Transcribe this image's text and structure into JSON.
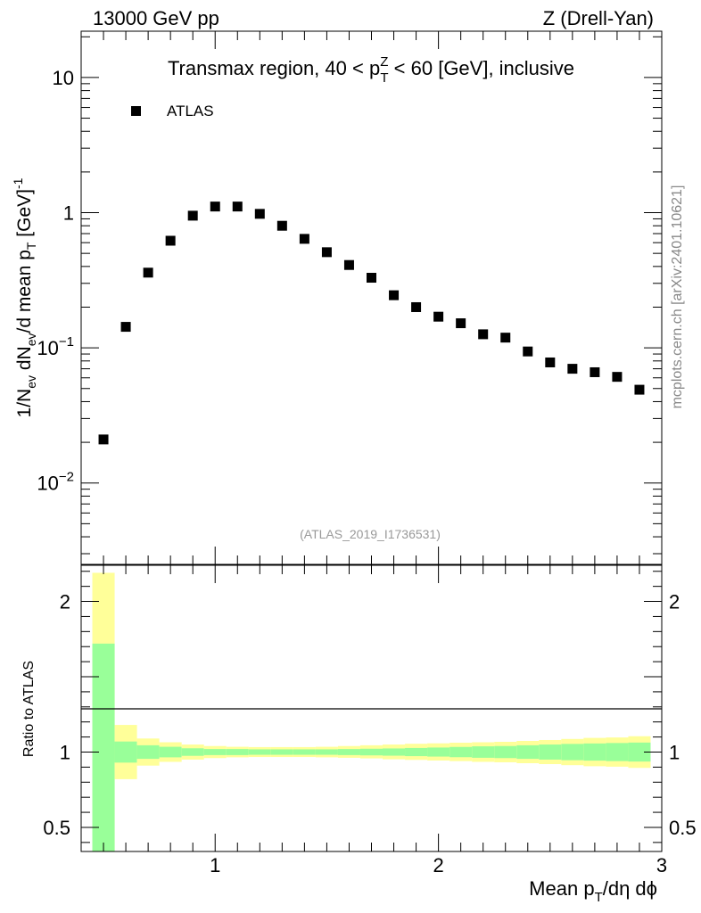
{
  "header": {
    "left": "13000 GeV pp",
    "right": "Z (Drell-Yan)"
  },
  "side_label": "mcplots.cern.ch [arXiv:2401.10621]",
  "chart_data": [
    {
      "type": "scatter",
      "title": "Transmax region, 40 < p_T^Z < 60 [GeV], inclusive",
      "title_parts": {
        "pre": "Transmax region, 40 < p",
        "sup": "Z",
        "sub": "T",
        "post": " < 60 [GeV], inclusive"
      },
      "xlabel": "Mean p_T/dη dϕ",
      "ylabel": "1/N_ev dN_ev/d mean p_T [GeV]^-1",
      "yscale": "log",
      "xlim": [
        0.4,
        3.0
      ],
      "ylim": [
        0.0025,
        22
      ],
      "yticks": [
        {
          "value": 10,
          "label": "10"
        },
        {
          "value": 1,
          "label": "1"
        },
        {
          "value": 0.1,
          "base": "10",
          "exp": "−1"
        },
        {
          "value": 0.01,
          "base": "10",
          "exp": "−2"
        }
      ],
      "legend": {
        "label": "ATLAS",
        "position": "top-left"
      },
      "reference": "(ATLAS_2019_I1736531)",
      "series": [
        {
          "name": "ATLAS",
          "x": [
            0.5,
            0.6,
            0.7,
            0.8,
            0.9,
            1.0,
            1.1,
            1.2,
            1.3,
            1.4,
            1.5,
            1.6,
            1.7,
            1.8,
            1.9,
            2.0,
            2.1,
            2.2,
            2.3,
            2.4,
            2.5,
            2.6,
            2.7,
            2.8,
            2.9
          ],
          "y": [
            0.021,
            0.143,
            0.36,
            0.62,
            0.95,
            1.11,
            1.11,
            0.98,
            0.8,
            0.64,
            0.51,
            0.41,
            0.33,
            0.245,
            0.2,
            0.17,
            0.152,
            0.126,
            0.119,
            0.094,
            0.078,
            0.07,
            0.066,
            0.061,
            0.049
          ]
        }
      ]
    },
    {
      "type": "band",
      "ylabel": "Ratio to ATLAS",
      "xlabel": "Mean p_T/dη dϕ",
      "xlabel_parts": {
        "pre": "Mean p",
        "sub": "T",
        "post": "/dη dϕ"
      },
      "xlim": [
        0.4,
        3.0
      ],
      "ylim": [
        0.34,
        2.24
      ],
      "xticks": [
        1,
        2,
        3
      ],
      "yticks": [
        {
          "value": 2,
          "label": "2"
        },
        {
          "value": 1,
          "label": "1"
        },
        {
          "value": 0.5,
          "label": "0.5"
        }
      ],
      "bins": [
        {
          "x0": 0.45,
          "x1": 0.55,
          "stat_lo": 0.34,
          "stat_hi": 1.72,
          "tot_lo": 0.34,
          "tot_hi": 2.19
        },
        {
          "x0": 0.55,
          "x1": 0.65,
          "stat_lo": 0.93,
          "stat_hi": 1.07,
          "tot_lo": 0.82,
          "tot_hi": 1.18
        },
        {
          "x0": 0.65,
          "x1": 0.75,
          "stat_lo": 0.955,
          "stat_hi": 1.045,
          "tot_lo": 0.91,
          "tot_hi": 1.09
        },
        {
          "x0": 0.75,
          "x1": 0.85,
          "stat_lo": 0.965,
          "stat_hi": 1.035,
          "tot_lo": 0.935,
          "tot_hi": 1.065
        },
        {
          "x0": 0.85,
          "x1": 0.95,
          "stat_lo": 0.975,
          "stat_hi": 1.025,
          "tot_lo": 0.95,
          "tot_hi": 1.05
        },
        {
          "x0": 0.95,
          "x1": 1.05,
          "stat_lo": 0.98,
          "stat_hi": 1.02,
          "tot_lo": 0.96,
          "tot_hi": 1.04
        },
        {
          "x0": 1.05,
          "x1": 1.15,
          "stat_lo": 0.98,
          "stat_hi": 1.02,
          "tot_lo": 0.965,
          "tot_hi": 1.035
        },
        {
          "x0": 1.15,
          "x1": 1.25,
          "stat_lo": 0.982,
          "stat_hi": 1.018,
          "tot_lo": 0.967,
          "tot_hi": 1.033
        },
        {
          "x0": 1.25,
          "x1": 1.35,
          "stat_lo": 0.982,
          "stat_hi": 1.018,
          "tot_lo": 0.967,
          "tot_hi": 1.033
        },
        {
          "x0": 1.35,
          "x1": 1.45,
          "stat_lo": 0.982,
          "stat_hi": 1.018,
          "tot_lo": 0.967,
          "tot_hi": 1.033
        },
        {
          "x0": 1.45,
          "x1": 1.55,
          "stat_lo": 0.982,
          "stat_hi": 1.018,
          "tot_lo": 0.965,
          "tot_hi": 1.035
        },
        {
          "x0": 1.55,
          "x1": 1.65,
          "stat_lo": 0.98,
          "stat_hi": 1.02,
          "tot_lo": 0.962,
          "tot_hi": 1.04
        },
        {
          "x0": 1.65,
          "x1": 1.75,
          "stat_lo": 0.978,
          "stat_hi": 1.022,
          "tot_lo": 0.958,
          "tot_hi": 1.045
        },
        {
          "x0": 1.75,
          "x1": 1.85,
          "stat_lo": 0.976,
          "stat_hi": 1.024,
          "tot_lo": 0.952,
          "tot_hi": 1.05
        },
        {
          "x0": 1.85,
          "x1": 1.95,
          "stat_lo": 0.973,
          "stat_hi": 1.027,
          "tot_lo": 0.948,
          "tot_hi": 1.055
        },
        {
          "x0": 1.95,
          "x1": 2.05,
          "stat_lo": 0.97,
          "stat_hi": 1.03,
          "tot_lo": 0.944,
          "tot_hi": 1.058
        },
        {
          "x0": 2.05,
          "x1": 2.15,
          "stat_lo": 0.966,
          "stat_hi": 1.034,
          "tot_lo": 0.94,
          "tot_hi": 1.062
        },
        {
          "x0": 2.15,
          "x1": 2.25,
          "stat_lo": 0.962,
          "stat_hi": 1.038,
          "tot_lo": 0.935,
          "tot_hi": 1.065
        },
        {
          "x0": 2.25,
          "x1": 2.35,
          "stat_lo": 0.96,
          "stat_hi": 1.04,
          "tot_lo": 0.932,
          "tot_hi": 1.068
        },
        {
          "x0": 2.35,
          "x1": 2.45,
          "stat_lo": 0.955,
          "stat_hi": 1.045,
          "tot_lo": 0.926,
          "tot_hi": 1.074
        },
        {
          "x0": 2.45,
          "x1": 2.55,
          "stat_lo": 0.95,
          "stat_hi": 1.05,
          "tot_lo": 0.92,
          "tot_hi": 1.08
        },
        {
          "x0": 2.55,
          "x1": 2.65,
          "stat_lo": 0.946,
          "stat_hi": 1.054,
          "tot_lo": 0.913,
          "tot_hi": 1.087
        },
        {
          "x0": 2.65,
          "x1": 2.75,
          "stat_lo": 0.943,
          "stat_hi": 1.057,
          "tot_lo": 0.906,
          "tot_hi": 1.094
        },
        {
          "x0": 2.75,
          "x1": 2.85,
          "stat_lo": 0.94,
          "stat_hi": 1.06,
          "tot_lo": 0.903,
          "tot_hi": 1.097
        },
        {
          "x0": 2.85,
          "x1": 2.95,
          "stat_lo": 0.937,
          "stat_hi": 1.063,
          "tot_lo": 0.895,
          "tot_hi": 1.105
        }
      ],
      "colors": {
        "stat": "#99ff99",
        "total": "#ffff99",
        "line": "#000000"
      }
    }
  ]
}
